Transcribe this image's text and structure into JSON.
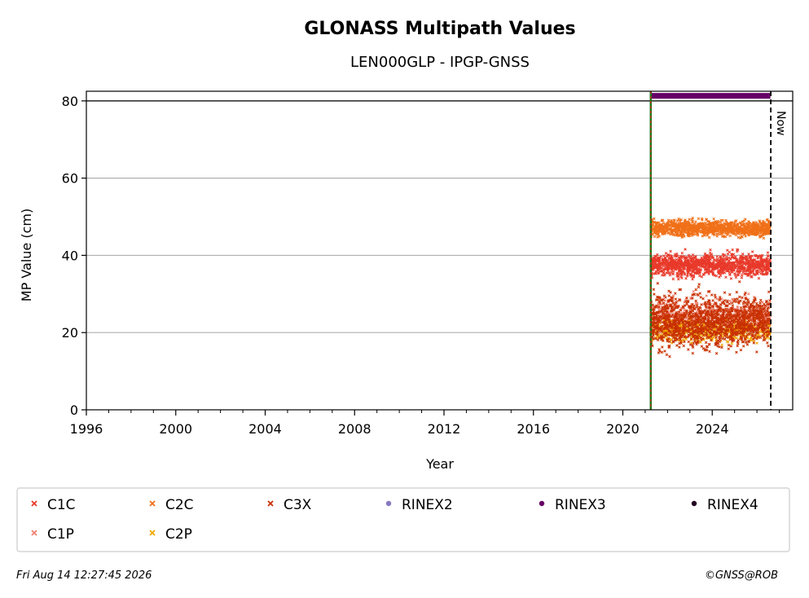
{
  "chart_data": {
    "type": "scatter",
    "title": "GLONASS Multipath Values",
    "subtitle": "LEN000GLP - IPGP-GNSS",
    "xlabel": "Year",
    "ylabel": "MP Value (cm)",
    "xlim": [
      1996,
      2027.6
    ],
    "ylim": [
      0,
      82.5
    ],
    "xticks": [
      "1996",
      "2000",
      "2004",
      "2008",
      "2012",
      "2016",
      "2020",
      "2024"
    ],
    "yticks": [
      "0",
      "20",
      "40",
      "60",
      "80"
    ],
    "grid": "horizontal",
    "reference_line_y": 80,
    "now_label": "Now",
    "now_x": 2026.62,
    "data_start_x": 2021.25,
    "series": [
      {
        "name": "C1C",
        "marker": "x",
        "color": "#e8392a",
        "x_range": [
          2021.25,
          2026.6
        ],
        "y_mean": 37.5,
        "y_spread": 2.5
      },
      {
        "name": "C2C",
        "marker": "x",
        "color": "#f07018",
        "x_range": [
          2021.25,
          2026.6
        ],
        "y_mean": 47,
        "y_spread": 1.8
      },
      {
        "name": "C3X",
        "marker": "x",
        "color": "#c83000",
        "x_range": [
          2021.25,
          2026.6
        ],
        "y_mean": 23,
        "y_spread": 6
      },
      {
        "name": "RINEX2",
        "marker": "o",
        "color": "#8878c0",
        "x_range": [],
        "y_mean": null,
        "y_spread": null
      },
      {
        "name": "RINEX3",
        "marker": "o",
        "color": "#660066",
        "x_range": [
          2021.25,
          2026.6
        ],
        "y_mean": 81.3,
        "y_spread": 0
      },
      {
        "name": "RINEX4",
        "marker": "o",
        "color": "#220022",
        "x_range": [],
        "y_mean": null,
        "y_spread": null
      },
      {
        "name": "C1P",
        "marker": "x",
        "color": "#f08070",
        "x_range": [
          2021.25,
          2026.6
        ],
        "y_mean": 24,
        "y_spread": 4
      },
      {
        "name": "C2P",
        "marker": "x",
        "color": "#f0a800",
        "x_range": [
          2021.25,
          2026.6
        ],
        "y_mean": 20.5,
        "y_spread": 2.5
      }
    ],
    "legend_placement": "bottom"
  },
  "footer": {
    "timestamp": "Fri Aug 14 12:27:45 2026",
    "copyright": "©GNSS@ROB"
  }
}
